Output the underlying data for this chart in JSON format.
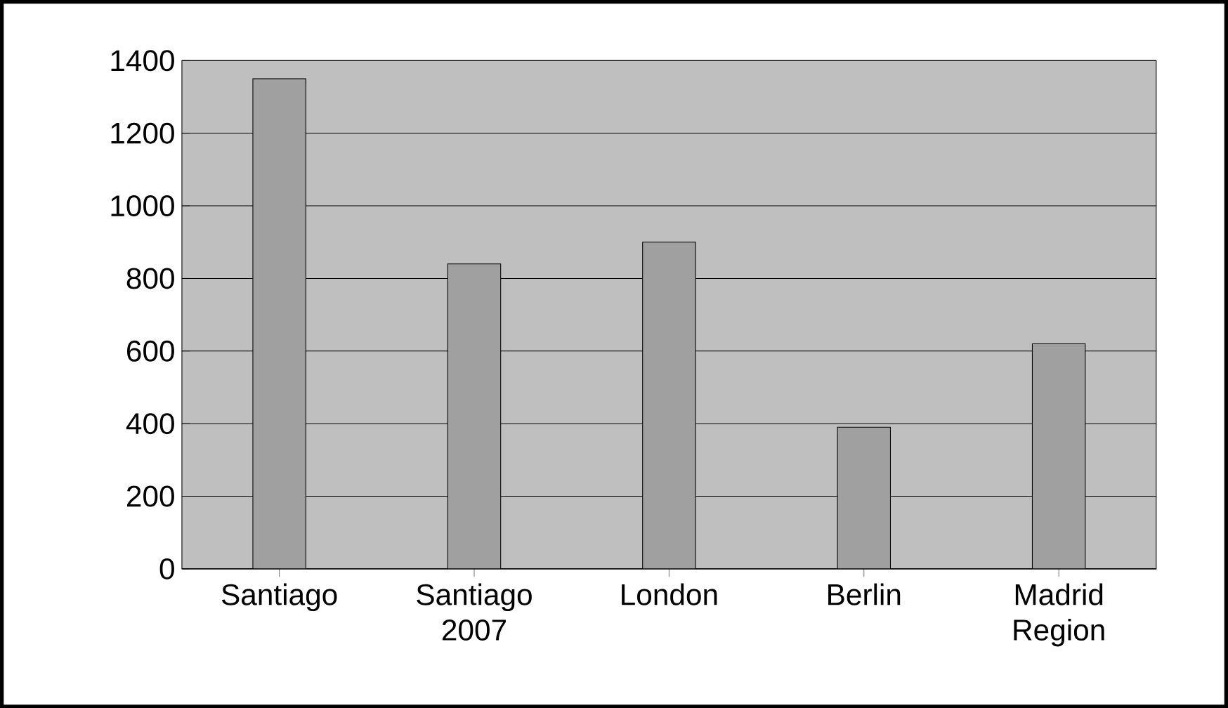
{
  "chart_data": {
    "type": "bar",
    "categories": [
      "Santiago",
      "Santiago 2007",
      "London",
      "Berlin",
      "Madrid Region"
    ],
    "values": [
      1350,
      840,
      900,
      390,
      620
    ],
    "color": "#a0a0a0",
    "ylim": [
      0,
      1400
    ],
    "yticks": [
      0,
      200,
      400,
      600,
      800,
      1000,
      1200,
      1400
    ],
    "grid": "y"
  }
}
